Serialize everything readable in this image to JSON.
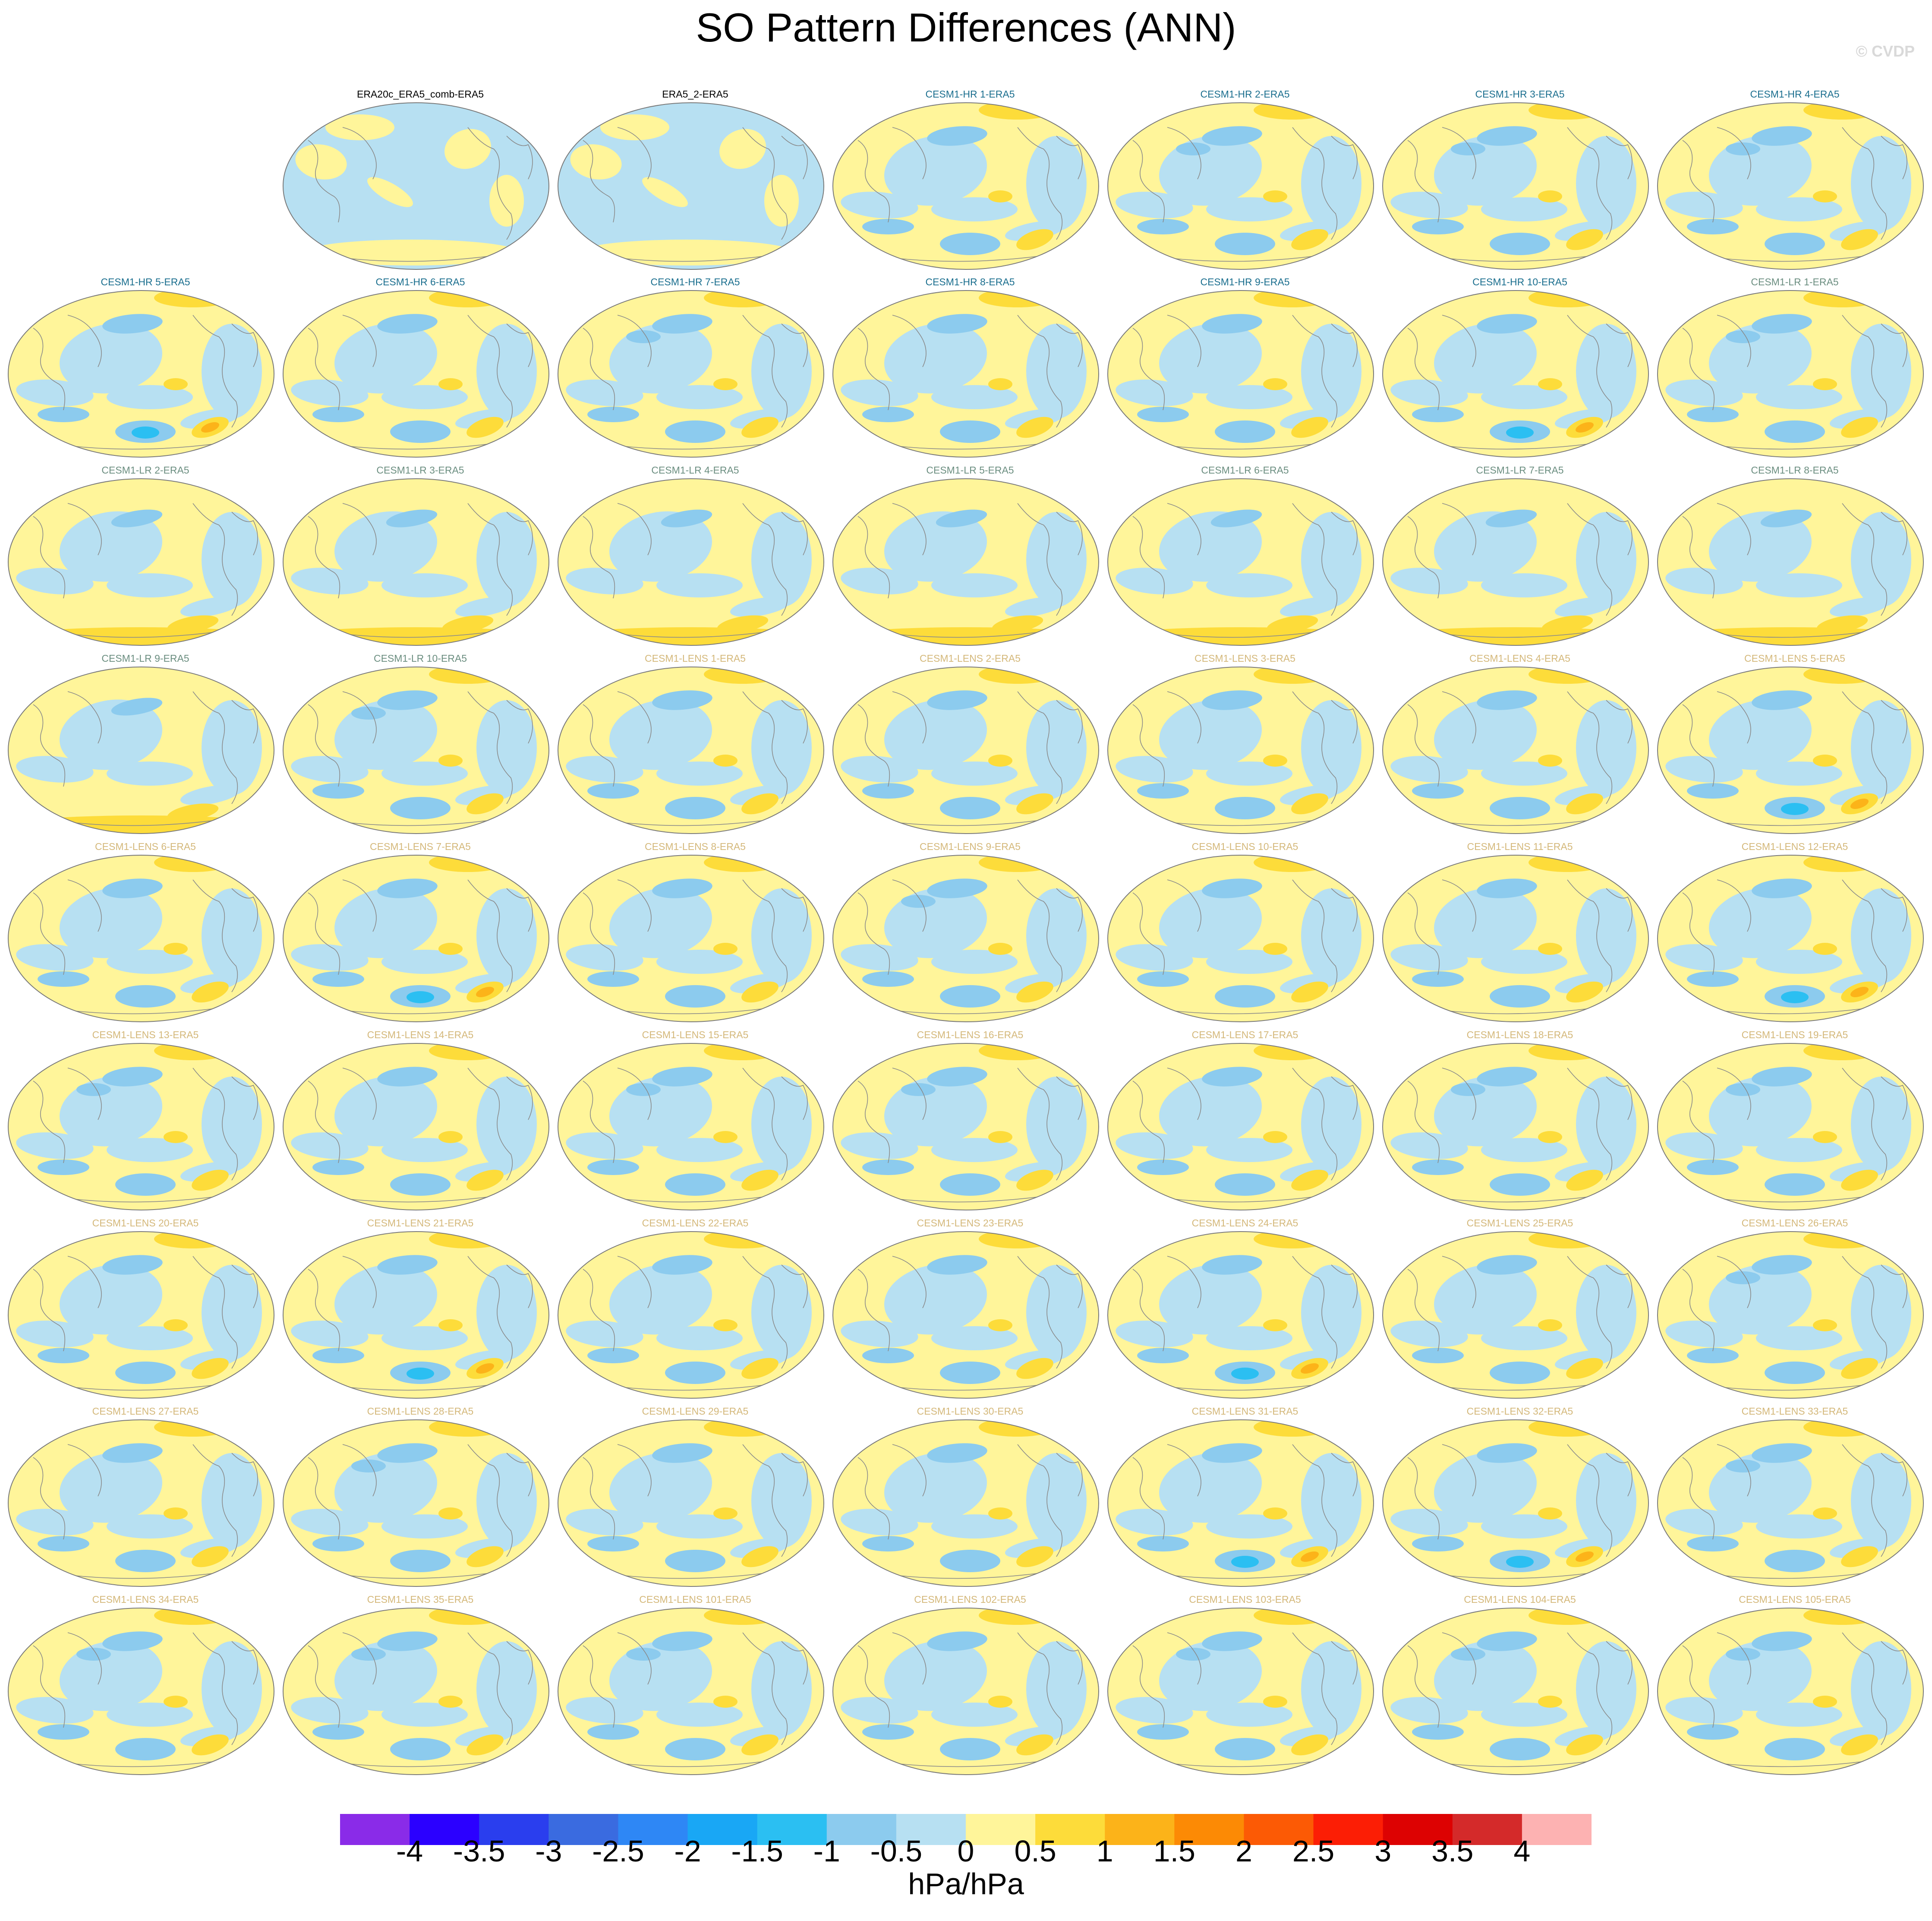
{
  "page": {
    "title": "SO Pattern Differences (ANN)",
    "credit": "© CVDP"
  },
  "chart_data": {
    "type": "heatmap",
    "description_of_panels": "global Hammer/Robinson-style map panels of sea-level-pressure pattern differences",
    "colorbar": {
      "units": "hPa/hPa",
      "ticks": [
        "-4",
        "-3.5",
        "-3",
        "-2.5",
        "-2",
        "-1.5",
        "-1",
        "-0.5",
        "0",
        "0.5",
        "1",
        "1.5",
        "2",
        "2.5",
        "3",
        "3.5",
        "4"
      ],
      "colors": [
        "#8a2be8",
        "#2b00ff",
        "#2a3eee",
        "#3a6be0",
        "#2e87f5",
        "#19a7f5",
        "#2bbff2",
        "#8ccbee",
        "#b7e0f2",
        "#fff59a",
        "#fddc3a",
        "#fcb319",
        "#fc8a05",
        "#fc5a05",
        "#fc1e05",
        "#dd0202",
        "#d42a2a",
        "#fdb2b2"
      ]
    },
    "panels": [
      {
        "title": "ERA20c_ERA5_comb-ERA5",
        "group": "obs",
        "pattern": "mostly-negative"
      },
      {
        "title": "ERA5_2-ERA5",
        "group": "obs",
        "pattern": "mostly-negative"
      },
      {
        "title": "CESM1-HR 1-ERA5",
        "group": "hr",
        "pattern": "sp-low"
      },
      {
        "title": "CESM1-HR 2-ERA5",
        "group": "hr",
        "pattern": "np-low"
      },
      {
        "title": "CESM1-HR 3-ERA5",
        "group": "hr",
        "pattern": "np-low"
      },
      {
        "title": "CESM1-HR 4-ERA5",
        "group": "hr",
        "pattern": "np-low"
      },
      {
        "title": "CESM1-HR 5-ERA5",
        "group": "hr",
        "pattern": "sp-strong"
      },
      {
        "title": "CESM1-HR 6-ERA5",
        "group": "hr",
        "pattern": "sp-low"
      },
      {
        "title": "CESM1-HR 7-ERA5",
        "group": "hr",
        "pattern": "np-low"
      },
      {
        "title": "CESM1-HR 8-ERA5",
        "group": "hr",
        "pattern": "sp-low"
      },
      {
        "title": "CESM1-HR 9-ERA5",
        "group": "hr",
        "pattern": "sp-low"
      },
      {
        "title": "CESM1-HR 10-ERA5",
        "group": "hr",
        "pattern": "sp-strong"
      },
      {
        "title": "CESM1-LR 1-ERA5",
        "group": "lr",
        "pattern": "np-low"
      },
      {
        "title": "CESM1-LR 2-ERA5",
        "group": "lr",
        "pattern": "south-pos"
      },
      {
        "title": "CESM1-LR 3-ERA5",
        "group": "lr",
        "pattern": "south-pos"
      },
      {
        "title": "CESM1-LR 4-ERA5",
        "group": "lr",
        "pattern": "south-pos"
      },
      {
        "title": "CESM1-LR 5-ERA5",
        "group": "lr",
        "pattern": "south-pos"
      },
      {
        "title": "CESM1-LR 6-ERA5",
        "group": "lr",
        "pattern": "south-pos"
      },
      {
        "title": "CESM1-LR 7-ERA5",
        "group": "lr",
        "pattern": "south-pos"
      },
      {
        "title": "CESM1-LR 8-ERA5",
        "group": "lr",
        "pattern": "south-pos"
      },
      {
        "title": "CESM1-LR 9-ERA5",
        "group": "lr",
        "pattern": "south-pos"
      },
      {
        "title": "CESM1-LR 10-ERA5",
        "group": "lr",
        "pattern": "np-low"
      },
      {
        "title": "CESM1-LENS 1-ERA5",
        "group": "lens",
        "pattern": "sp-low"
      },
      {
        "title": "CESM1-LENS 2-ERA5",
        "group": "lens",
        "pattern": "sp-low"
      },
      {
        "title": "CESM1-LENS 3-ERA5",
        "group": "lens",
        "pattern": "sp-low"
      },
      {
        "title": "CESM1-LENS 4-ERA5",
        "group": "lens",
        "pattern": "sp-low"
      },
      {
        "title": "CESM1-LENS 5-ERA5",
        "group": "lens",
        "pattern": "sp-strong"
      },
      {
        "title": "CESM1-LENS 6-ERA5",
        "group": "lens",
        "pattern": "sp-low"
      },
      {
        "title": "CESM1-LENS 7-ERA5",
        "group": "lens",
        "pattern": "sp-strong"
      },
      {
        "title": "CESM1-LENS 8-ERA5",
        "group": "lens",
        "pattern": "sp-low"
      },
      {
        "title": "CESM1-LENS 9-ERA5",
        "group": "lens",
        "pattern": "np-low"
      },
      {
        "title": "CESM1-LENS 10-ERA5",
        "group": "lens",
        "pattern": "sp-low"
      },
      {
        "title": "CESM1-LENS 11-ERA5",
        "group": "lens",
        "pattern": "sp-low"
      },
      {
        "title": "CESM1-LENS 12-ERA5",
        "group": "lens",
        "pattern": "sp-strong"
      },
      {
        "title": "CESM1-LENS 13-ERA5",
        "group": "lens",
        "pattern": "np-low"
      },
      {
        "title": "CESM1-LENS 14-ERA5",
        "group": "lens",
        "pattern": "sp-low"
      },
      {
        "title": "CESM1-LENS 15-ERA5",
        "group": "lens",
        "pattern": "np-low"
      },
      {
        "title": "CESM1-LENS 16-ERA5",
        "group": "lens",
        "pattern": "np-low"
      },
      {
        "title": "CESM1-LENS 17-ERA5",
        "group": "lens",
        "pattern": "sp-low"
      },
      {
        "title": "CESM1-LENS 18-ERA5",
        "group": "lens",
        "pattern": "np-low"
      },
      {
        "title": "CESM1-LENS 19-ERA5",
        "group": "lens",
        "pattern": "np-low"
      },
      {
        "title": "CESM1-LENS 20-ERA5",
        "group": "lens",
        "pattern": "sp-low"
      },
      {
        "title": "CESM1-LENS 21-ERA5",
        "group": "lens",
        "pattern": "sp-strong"
      },
      {
        "title": "CESM1-LENS 22-ERA5",
        "group": "lens",
        "pattern": "sp-low"
      },
      {
        "title": "CESM1-LENS 23-ERA5",
        "group": "lens",
        "pattern": "sp-low"
      },
      {
        "title": "CESM1-LENS 24-ERA5",
        "group": "lens",
        "pattern": "sp-strong"
      },
      {
        "title": "CESM1-LENS 25-ERA5",
        "group": "lens",
        "pattern": "sp-low"
      },
      {
        "title": "CESM1-LENS 26-ERA5",
        "group": "lens",
        "pattern": "np-low"
      },
      {
        "title": "CESM1-LENS 27-ERA5",
        "group": "lens",
        "pattern": "sp-low"
      },
      {
        "title": "CESM1-LENS 28-ERA5",
        "group": "lens",
        "pattern": "np-low"
      },
      {
        "title": "CESM1-LENS 29-ERA5",
        "group": "lens",
        "pattern": "sp-low"
      },
      {
        "title": "CESM1-LENS 30-ERA5",
        "group": "lens",
        "pattern": "sp-low"
      },
      {
        "title": "CESM1-LENS 31-ERA5",
        "group": "lens",
        "pattern": "sp-strong"
      },
      {
        "title": "CESM1-LENS 32-ERA5",
        "group": "lens",
        "pattern": "sp-strong"
      },
      {
        "title": "CESM1-LENS 33-ERA5",
        "group": "lens",
        "pattern": "np-low"
      },
      {
        "title": "CESM1-LENS 34-ERA5",
        "group": "lens",
        "pattern": "np-low"
      },
      {
        "title": "CESM1-LENS 35-ERA5",
        "group": "lens",
        "pattern": "np-low"
      },
      {
        "title": "CESM1-LENS 101-ERA5",
        "group": "lens",
        "pattern": "np-low"
      },
      {
        "title": "CESM1-LENS 102-ERA5",
        "group": "lens",
        "pattern": "sp-low"
      },
      {
        "title": "CESM1-LENS 103-ERA5",
        "group": "lens",
        "pattern": "np-low"
      },
      {
        "title": "CESM1-LENS 104-ERA5",
        "group": "lens",
        "pattern": "np-low"
      },
      {
        "title": "CESM1-LENS 105-ERA5",
        "group": "lens",
        "pattern": "np-low"
      }
    ],
    "title_colors": {
      "obs": "#000000",
      "hr": "#1a6e8e",
      "lr": "#6b8e80",
      "lens": "#d4b87a"
    }
  }
}
